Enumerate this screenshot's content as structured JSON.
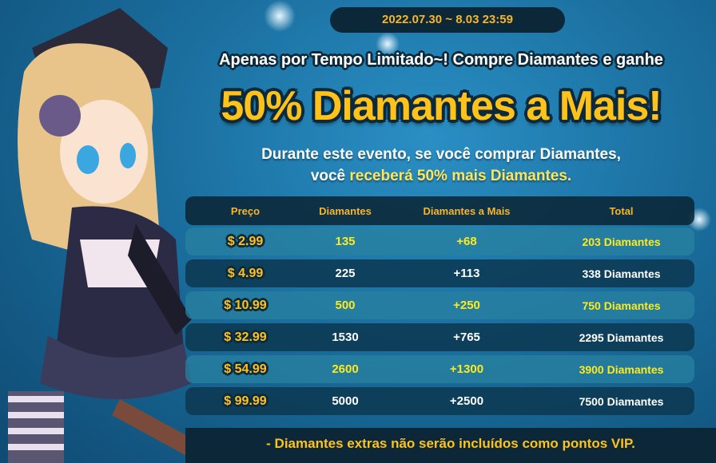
{
  "event_date": "2022.07.30 ~ 8.03 23:59",
  "subtitle": "Apenas por Tempo Limitado~! Compre Diamantes e ganhe",
  "title": "50% Diamantes a Mais!",
  "description": {
    "line1": "Durante este evento, se você comprar Diamantes,",
    "line2_prefix": "você ",
    "line2_highlight": "receberá 50% mais Diamantes."
  },
  "table": {
    "headers": [
      "Preço",
      "Diamantes",
      "Diamantes a Mais",
      "Total"
    ],
    "rows": [
      [
        "$ 2.99",
        "135",
        "+68",
        "203 Diamantes"
      ],
      [
        "$ 4.99",
        "225",
        "+113",
        "338 Diamantes"
      ],
      [
        "$ 10.99",
        "500",
        "+250",
        "750 Diamantes"
      ],
      [
        "$ 32.99",
        "1530",
        "+765",
        "2295 Diamantes"
      ],
      [
        "$ 54.99",
        "2600",
        "+1300",
        "3900 Diamantes"
      ],
      [
        "$ 99.99",
        "5000",
        "+2500",
        "7500 Diamantes"
      ]
    ]
  },
  "footer_note": "- Diamantes extras não serão incluídos como pontos VIP.",
  "colors": {
    "accent": "#ffc21a",
    "highlight": "#ffeb1a",
    "dark_panel": "#0c2838",
    "background": "#1a6e9e"
  }
}
